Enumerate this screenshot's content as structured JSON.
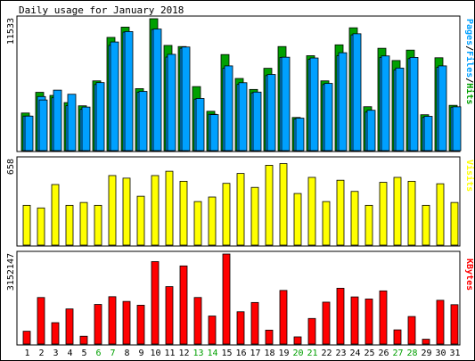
{
  "title": "Daily usage for January 2018",
  "colors": {
    "hits": "#00a000",
    "files": "#00a0ff",
    "pages": "#00a0ff",
    "visits": "#ffff00",
    "kbytes": "#ff0000",
    "weekday_label": "#000000",
    "weekend_label": "#00a000",
    "plot_background": "#ffffff"
  },
  "chart_data": [
    {
      "type": "bar",
      "panel": "hits-files-pages",
      "side_label_parts": [
        {
          "text": "Pages",
          "color": "#00a0ff"
        },
        {
          "text": "/",
          "color": "#000000"
        },
        {
          "text": "Files",
          "color": "#00a0ff"
        },
        {
          "text": "/",
          "color": "#000000"
        },
        {
          "text": "Hits",
          "color": "#00a000"
        }
      ],
      "ymax_label": "11533",
      "ylim": [
        0,
        11533
      ],
      "categories": [
        "1",
        "2",
        "3",
        "4",
        "5",
        "6",
        "7",
        "8",
        "9",
        "10",
        "11",
        "12",
        "13",
        "14",
        "15",
        "16",
        "17",
        "18",
        "19",
        "20",
        "21",
        "22",
        "23",
        "24",
        "25",
        "26",
        "27",
        "28",
        "29",
        "30",
        "31"
      ],
      "series": [
        {
          "name": "Hits",
          "values": [
            3290,
            5100,
            4830,
            4200,
            3920,
            6100,
            9900,
            10800,
            5420,
            11533,
            9200,
            9100,
            5600,
            3440,
            8400,
            6310,
            5350,
            7200,
            9100,
            2900,
            8300,
            6100,
            9250,
            10740,
            3840,
            8950,
            7880,
            8790,
            3140,
            8120,
            3960
          ]
        },
        {
          "name": "Files",
          "values": [
            3020,
            4730,
            4620,
            3930,
            3610,
            5780,
            9200,
            10360,
            5110,
            10590,
            8180,
            8950,
            4500,
            3180,
            7200,
            5790,
            5050,
            6560,
            8150,
            2770,
            7980,
            5780,
            8300,
            10120,
            3370,
            8140,
            7050,
            8040,
            2900,
            7280,
            3800
          ]
        },
        {
          "name": "Pages",
          "values": [
            3020,
            4430,
            5290,
            4930,
            3810,
            5950,
            9500,
            10410,
            5180,
            10630,
            8420,
            9060,
            4560,
            3150,
            7410,
            5940,
            5120,
            6660,
            8170,
            2840,
            8100,
            5880,
            8560,
            10220,
            3530,
            8280,
            7220,
            8150,
            3000,
            7410,
            3830
          ]
        }
      ]
    },
    {
      "type": "bar",
      "panel": "visits",
      "side_label_parts": [
        {
          "text": "Visits",
          "color": "#ffff00"
        }
      ],
      "ymax_label": "658",
      "ylim": [
        0,
        658
      ],
      "categories": [
        "1",
        "2",
        "3",
        "4",
        "5",
        "6",
        "7",
        "8",
        "9",
        "10",
        "11",
        "12",
        "13",
        "14",
        "15",
        "16",
        "17",
        "18",
        "19",
        "20",
        "21",
        "22",
        "23",
        "24",
        "25",
        "26",
        "27",
        "28",
        "29",
        "30",
        "31"
      ],
      "series": [
        {
          "name": "Visits",
          "values": [
            306,
            286,
            466,
            306,
            328,
            306,
            535,
            515,
            376,
            535,
            568,
            491,
            335,
            370,
            475,
            551,
            444,
            614,
            627,
            397,
            521,
            335,
            499,
            413,
            306,
            483,
            521,
            491,
            306,
            472,
            328
          ]
        }
      ]
    },
    {
      "type": "bar",
      "panel": "kbytes",
      "side_label_parts": [
        {
          "text": "KBytes",
          "color": "#ff0000"
        }
      ],
      "ymax_label": "3152147",
      "ylim": [
        0,
        3152147
      ],
      "categories": [
        "1",
        "2",
        "3",
        "4",
        "5",
        "6",
        "7",
        "8",
        "9",
        "10",
        "11",
        "12",
        "13",
        "14",
        "15",
        "16",
        "17",
        "18",
        "19",
        "20",
        "21",
        "22",
        "23",
        "24",
        "25",
        "26",
        "27",
        "28",
        "29",
        "30",
        "31"
      ],
      "series": [
        {
          "name": "KBytes",
          "values": [
            449000,
            1630000,
            749000,
            1231000,
            274000,
            1388000,
            1659000,
            1493000,
            1360000,
            2887000,
            2012000,
            2736000,
            1631000,
            982000,
            3152147,
            1131000,
            1456000,
            488000,
            1878000,
            251000,
            896000,
            1468000,
            1955000,
            1651000,
            1578000,
            1862000,
            497000,
            965000,
            170000,
            1533000,
            1379000
          ]
        }
      ]
    }
  ]
}
